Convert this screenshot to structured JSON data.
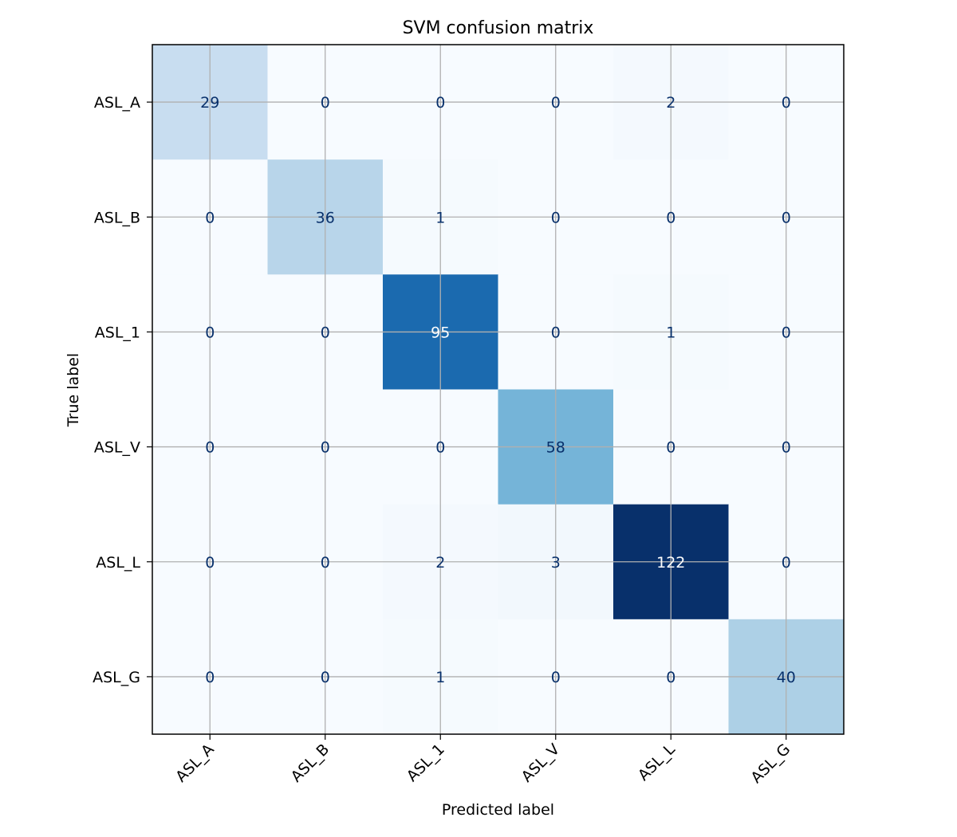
{
  "chart_data": {
    "type": "heatmap",
    "title": "SVM confusion matrix",
    "xlabel": "Predicted label",
    "ylabel": "True label",
    "x_categories": [
      "ASL_A",
      "ASL_B",
      "ASL_1",
      "ASL_V",
      "ASL_L",
      "ASL_G"
    ],
    "y_categories": [
      "ASL_A",
      "ASL_B",
      "ASL_1",
      "ASL_V",
      "ASL_L",
      "ASL_G"
    ],
    "values": [
      [
        29,
        0,
        0,
        0,
        2,
        0
      ],
      [
        0,
        36,
        1,
        0,
        0,
        0
      ],
      [
        0,
        0,
        95,
        0,
        1,
        0
      ],
      [
        0,
        0,
        0,
        58,
        0,
        0
      ],
      [
        0,
        0,
        2,
        3,
        122,
        0
      ],
      [
        0,
        0,
        1,
        0,
        0,
        40
      ]
    ],
    "colormap": "Blues",
    "grid": true,
    "colors": {
      "cell_text_dark": "#08306b",
      "cell_text_light": "#ffffff",
      "grid": "#b0b0b0"
    }
  }
}
